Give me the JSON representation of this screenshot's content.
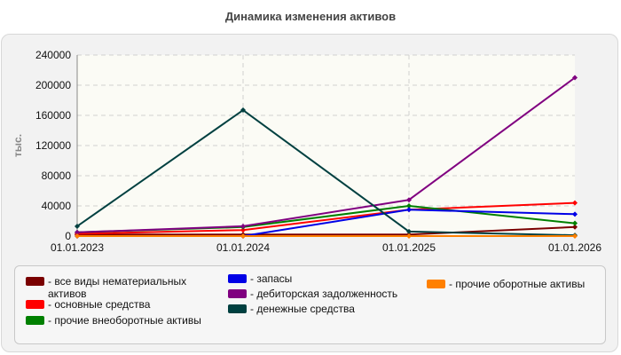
{
  "chart_data": {
    "type": "line",
    "title": "Динамика изменения активов",
    "ylabel": "тыс.",
    "categories": [
      "01.01.2023",
      "01.01.2024",
      "01.01.2025",
      "01.01.2026"
    ],
    "yticks": [
      "0",
      "40000",
      "80000",
      "120000",
      "160000",
      "200000",
      "240000"
    ],
    "ylim": [
      0,
      240000
    ],
    "grid": true,
    "legend_position": "bottom",
    "series": [
      {
        "name": "- все виды нематериальных активов",
        "color": "#7a0000",
        "values": [
          2000,
          2000,
          2000,
          12000
        ]
      },
      {
        "name": "- основные средства",
        "color": "#ff0000",
        "values": [
          3000,
          8000,
          35000,
          44000
        ]
      },
      {
        "name": "- прочие внеоборотные активы",
        "color": "#008000",
        "values": [
          5000,
          12000,
          40000,
          17000
        ]
      },
      {
        "name": "- запасы",
        "color": "#0000e6",
        "values": [
          0,
          0,
          35000,
          29000
        ]
      },
      {
        "name": "- дебиторская задолженность",
        "color": "#800080",
        "values": [
          5000,
          13000,
          48000,
          210000
        ]
      },
      {
        "name": "- денежные средства",
        "color": "#004040",
        "values": [
          13000,
          167000,
          6000,
          1000
        ]
      },
      {
        "name": "- прочие оборотные активы",
        "color": "#ff8000",
        "values": [
          0,
          0,
          0,
          0
        ]
      }
    ]
  }
}
